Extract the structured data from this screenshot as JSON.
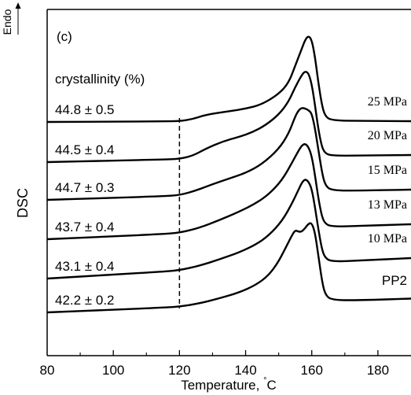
{
  "chart_data": {
    "type": "line",
    "panel_label": "(c)",
    "xlabel": "Temperature,",
    "xlabel_unit": "°C",
    "ylabel": "DSC",
    "endo_label": "Endo",
    "xlim": [
      80,
      190
    ],
    "xticks": [
      80,
      100,
      120,
      140,
      160,
      180
    ],
    "minor_xticks": [
      90,
      110,
      130,
      150,
      170
    ],
    "grid": false,
    "annotation_header": "crystallinity (%)",
    "reference_line_x": 120,
    "series": [
      {
        "name": "25 MPa",
        "crystallinity": "44.8 ± 0.5",
        "points": [
          [
            80,
            0
          ],
          [
            100,
            0.002
          ],
          [
            115,
            0.004
          ],
          [
            120,
            0.006
          ],
          [
            124,
            0.03
          ],
          [
            128,
            0.08
          ],
          [
            135,
            0.12
          ],
          [
            140,
            0.15
          ],
          [
            145,
            0.2
          ],
          [
            150,
            0.32
          ],
          [
            153,
            0.45
          ],
          [
            155,
            0.65
          ],
          [
            157,
            0.85
          ],
          [
            158,
            0.95
          ],
          [
            159,
            1
          ],
          [
            160,
            0.95
          ],
          [
            161,
            0.75
          ],
          [
            162,
            0.45
          ],
          [
            163,
            0.2
          ],
          [
            164,
            0.06
          ],
          [
            166,
            0.01
          ],
          [
            175,
            0.005
          ],
          [
            190,
            0
          ]
        ]
      },
      {
        "name": "20 MPa",
        "crystallinity": "44.5 ± 0.4",
        "points": [
          [
            80,
            0
          ],
          [
            100,
            0.002
          ],
          [
            115,
            0.004
          ],
          [
            120,
            0.008
          ],
          [
            124,
            0.04
          ],
          [
            128,
            0.12
          ],
          [
            133,
            0.2
          ],
          [
            138,
            0.25
          ],
          [
            142,
            0.3
          ],
          [
            146,
            0.38
          ],
          [
            150,
            0.5
          ],
          [
            153,
            0.65
          ],
          [
            155,
            0.82
          ],
          [
            157,
            0.96
          ],
          [
            158,
            1
          ],
          [
            159,
            0.98
          ],
          [
            160,
            0.85
          ],
          [
            161,
            0.6
          ],
          [
            162,
            0.32
          ],
          [
            163,
            0.12
          ],
          [
            164,
            0.04
          ],
          [
            166,
            0.01
          ],
          [
            175,
            0.005
          ],
          [
            190,
            0
          ]
        ]
      },
      {
        "name": "15 MPa",
        "crystallinity": "44.7 ± 0.3",
        "points": [
          [
            80,
            0
          ],
          [
            100,
            0.002
          ],
          [
            115,
            0.005
          ],
          [
            120,
            0.012
          ],
          [
            125,
            0.06
          ],
          [
            130,
            0.13
          ],
          [
            135,
            0.19
          ],
          [
            140,
            0.25
          ],
          [
            145,
            0.35
          ],
          [
            150,
            0.52
          ],
          [
            153,
            0.7
          ],
          [
            155,
            0.9
          ],
          [
            156,
            0.97
          ],
          [
            157,
            1
          ],
          [
            158,
            0.99
          ],
          [
            159,
            0.97
          ],
          [
            160,
            0.93
          ],
          [
            161,
            0.75
          ],
          [
            162,
            0.5
          ],
          [
            163,
            0.25
          ],
          [
            164,
            0.08
          ],
          [
            166,
            0.015
          ],
          [
            175,
            0.005
          ],
          [
            190,
            0
          ]
        ]
      },
      {
        "name": "13 MPa",
        "crystallinity": "43.7 ± 0.4",
        "points": [
          [
            80,
            0
          ],
          [
            100,
            0.002
          ],
          [
            115,
            0.005
          ],
          [
            120,
            0.012
          ],
          [
            126,
            0.06
          ],
          [
            132,
            0.14
          ],
          [
            138,
            0.23
          ],
          [
            143,
            0.32
          ],
          [
            147,
            0.42
          ],
          [
            151,
            0.58
          ],
          [
            154,
            0.78
          ],
          [
            156,
            0.92
          ],
          [
            157,
            0.98
          ],
          [
            158,
            1
          ],
          [
            159,
            0.96
          ],
          [
            160,
            0.85
          ],
          [
            161,
            0.62
          ],
          [
            162,
            0.35
          ],
          [
            163,
            0.14
          ],
          [
            164,
            0.05
          ],
          [
            166,
            0.01
          ],
          [
            175,
            0.005
          ],
          [
            190,
            0
          ]
        ]
      },
      {
        "name": "10 MPa",
        "crystallinity": "43.1 ± 0.4",
        "points": [
          [
            80,
            0
          ],
          [
            100,
            0.002
          ],
          [
            115,
            0.005
          ],
          [
            120,
            0.01
          ],
          [
            126,
            0.05
          ],
          [
            132,
            0.11
          ],
          [
            138,
            0.18
          ],
          [
            143,
            0.26
          ],
          [
            147,
            0.36
          ],
          [
            151,
            0.52
          ],
          [
            154,
            0.72
          ],
          [
            156,
            0.88
          ],
          [
            157,
            0.96
          ],
          [
            158,
            1
          ],
          [
            159,
            0.97
          ],
          [
            160,
            0.88
          ],
          [
            161,
            0.66
          ],
          [
            162,
            0.4
          ],
          [
            163,
            0.17
          ],
          [
            164,
            0.06
          ],
          [
            166,
            0.01
          ],
          [
            175,
            0.005
          ],
          [
            190,
            0
          ]
        ]
      },
      {
        "name": "PP2",
        "crystallinity": "42.2 ± 0.2",
        "points": [
          [
            80,
            0
          ],
          [
            100,
            0.003
          ],
          [
            115,
            0.006
          ],
          [
            120,
            0.01
          ],
          [
            126,
            0.04
          ],
          [
            132,
            0.09
          ],
          [
            138,
            0.15
          ],
          [
            143,
            0.23
          ],
          [
            147,
            0.34
          ],
          [
            150,
            0.5
          ],
          [
            152,
            0.65
          ],
          [
            154,
            0.8
          ],
          [
            155,
            0.86
          ],
          [
            156,
            0.84
          ],
          [
            157,
            0.84
          ],
          [
            158,
            0.88
          ],
          [
            159,
            0.93
          ],
          [
            160,
            0.94
          ],
          [
            161,
            0.82
          ],
          [
            162,
            0.55
          ],
          [
            163,
            0.27
          ],
          [
            164,
            0.09
          ],
          [
            166,
            0.02
          ],
          [
            175,
            0.008
          ],
          [
            190,
            0.005
          ]
        ]
      }
    ]
  }
}
